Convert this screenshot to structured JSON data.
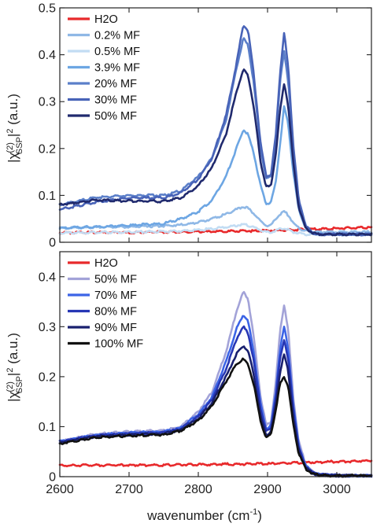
{
  "chart_data": [
    {
      "type": "line",
      "panel": "top",
      "ylabel_parts": {
        "pre": "|χ",
        "sup": "(2)",
        "sub": "SSP",
        "post": "|",
        "sup2": "2",
        "unit": " (a.u.)"
      },
      "xlabel": "",
      "xlim": [
        2600,
        3050
      ],
      "ylim": [
        0,
        0.5
      ],
      "yticks": [
        0,
        0.1,
        0.2,
        0.3,
        0.4,
        0.5
      ],
      "ytick_labels": [
        "0",
        "0.1",
        "0.2",
        "0.3",
        "0.4",
        "0.5"
      ],
      "xticks": [
        2600,
        2700,
        2800,
        2900,
        3000
      ],
      "xtick_labels": [
        "",
        "",
        "",
        "",
        ""
      ],
      "legend": "top-left",
      "grid": false,
      "x": [
        2600,
        2650,
        2700,
        2750,
        2775,
        2800,
        2820,
        2840,
        2855,
        2865,
        2872,
        2880,
        2890,
        2898,
        2905,
        2912,
        2918,
        2924,
        2930,
        2937,
        2945,
        2955,
        2965,
        2975,
        2990,
        3010,
        3030,
        3050
      ],
      "series": [
        {
          "name": "H2O",
          "color": "#e8292b",
          "values": [
            0.02,
            0.021,
            0.021,
            0.022,
            0.022,
            0.023,
            0.023,
            0.023,
            0.024,
            0.024,
            0.024,
            0.024,
            0.025,
            0.025,
            0.025,
            0.025,
            0.026,
            0.026,
            0.026,
            0.027,
            0.027,
            0.027,
            0.028,
            0.028,
            0.029,
            0.03,
            0.031,
            0.032
          ]
        },
        {
          "name": "0.2% MF",
          "color": "#8fb8e6",
          "values": [
            0.03,
            0.032,
            0.033,
            0.035,
            0.037,
            0.042,
            0.05,
            0.06,
            0.07,
            0.076,
            0.072,
            0.062,
            0.045,
            0.035,
            0.037,
            0.05,
            0.06,
            0.066,
            0.058,
            0.042,
            0.03,
            0.024,
            0.022,
            0.022,
            0.022,
            0.022,
            0.022,
            0.022
          ]
        },
        {
          "name": "0.5% MF",
          "color": "#c2dcf3",
          "values": [
            0.02,
            0.021,
            0.022,
            0.023,
            0.024,
            0.026,
            0.029,
            0.032,
            0.036,
            0.038,
            0.036,
            0.032,
            0.026,
            0.022,
            0.022,
            0.025,
            0.028,
            0.03,
            0.027,
            0.022,
            0.019,
            0.017,
            0.017,
            0.017,
            0.017,
            0.017,
            0.017,
            0.017
          ]
        },
        {
          "name": "3.9% MF",
          "color": "#6da6e3",
          "values": [
            0.03,
            0.033,
            0.036,
            0.04,
            0.05,
            0.065,
            0.09,
            0.14,
            0.2,
            0.24,
            0.23,
            0.19,
            0.12,
            0.082,
            0.085,
            0.13,
            0.21,
            0.29,
            0.25,
            0.15,
            0.07,
            0.03,
            0.02,
            0.017,
            0.017,
            0.017,
            0.017,
            0.017
          ]
        },
        {
          "name": "20% MF",
          "color": "#5b7fc9",
          "values": [
            0.08,
            0.095,
            0.1,
            0.1,
            0.11,
            0.14,
            0.18,
            0.26,
            0.37,
            0.435,
            0.42,
            0.34,
            0.2,
            0.135,
            0.14,
            0.22,
            0.34,
            0.41,
            0.34,
            0.2,
            0.09,
            0.035,
            0.02,
            0.017,
            0.017,
            0.017,
            0.017,
            0.017
          ]
        },
        {
          "name": "30% MF",
          "color": "#4863b8",
          "values": [
            0.07,
            0.085,
            0.095,
            0.095,
            0.105,
            0.135,
            0.18,
            0.27,
            0.38,
            0.465,
            0.45,
            0.36,
            0.21,
            0.14,
            0.145,
            0.23,
            0.36,
            0.448,
            0.37,
            0.21,
            0.09,
            0.035,
            0.02,
            0.017,
            0.017,
            0.017,
            0.017,
            0.017
          ]
        },
        {
          "name": "50% MF",
          "color": "#202a6e",
          "values": [
            0.08,
            0.09,
            0.088,
            0.087,
            0.095,
            0.12,
            0.16,
            0.23,
            0.32,
            0.37,
            0.355,
            0.29,
            0.17,
            0.118,
            0.12,
            0.19,
            0.28,
            0.34,
            0.29,
            0.17,
            0.075,
            0.03,
            0.02,
            0.017,
            0.017,
            0.017,
            0.017,
            0.017
          ]
        }
      ]
    },
    {
      "type": "line",
      "panel": "bottom",
      "ylabel_parts": {
        "pre": "|χ",
        "sup": "(2)",
        "sub": "SSP",
        "post": "|",
        "sup2": "2",
        "unit": " (a.u.)"
      },
      "xlabel_parts": {
        "pre": "wavenumber (cm",
        "sup": "-1",
        "post": ")"
      },
      "xlim": [
        2600,
        3050
      ],
      "ylim": [
        0,
        0.45
      ],
      "yticks": [
        0,
        0.1,
        0.2,
        0.3,
        0.4
      ],
      "ytick_labels": [
        "0",
        "0.1",
        "0.2",
        "0.3",
        "0.4"
      ],
      "xticks": [
        2600,
        2700,
        2800,
        2900,
        3000
      ],
      "xtick_labels": [
        "2600",
        "2700",
        "2800",
        "2900",
        "3000"
      ],
      "legend": "top-left",
      "grid": false,
      "x": [
        2600,
        2650,
        2700,
        2750,
        2775,
        2800,
        2820,
        2840,
        2855,
        2865,
        2872,
        2880,
        2890,
        2898,
        2905,
        2912,
        2918,
        2924,
        2930,
        2937,
        2945,
        2955,
        2965,
        2975,
        2990,
        3010,
        3030,
        3050
      ],
      "series": [
        {
          "name": "H2O",
          "color": "#e8292b",
          "values": [
            0.022,
            0.023,
            0.023,
            0.023,
            0.024,
            0.024,
            0.024,
            0.025,
            0.025,
            0.025,
            0.025,
            0.026,
            0.026,
            0.026,
            0.026,
            0.027,
            0.027,
            0.027,
            0.027,
            0.028,
            0.028,
            0.028,
            0.029,
            0.029,
            0.03,
            0.03,
            0.031,
            0.032
          ]
        },
        {
          "name": "50% MF",
          "color": "#a3a3d8",
          "values": [
            0.07,
            0.085,
            0.09,
            0.092,
            0.1,
            0.13,
            0.17,
            0.25,
            0.33,
            0.37,
            0.355,
            0.28,
            0.16,
            0.102,
            0.11,
            0.19,
            0.29,
            0.345,
            0.29,
            0.16,
            0.07,
            0.025,
            0.01,
            0.005,
            0.003,
            0.002,
            0.002,
            0.002
          ]
        },
        {
          "name": "70% MF",
          "color": "#3c64e6",
          "values": [
            0.07,
            0.083,
            0.088,
            0.09,
            0.098,
            0.125,
            0.16,
            0.23,
            0.295,
            0.325,
            0.31,
            0.25,
            0.145,
            0.095,
            0.102,
            0.17,
            0.255,
            0.3,
            0.255,
            0.145,
            0.063,
            0.022,
            0.009,
            0.004,
            0.003,
            0.002,
            0.002,
            0.002
          ]
        },
        {
          "name": "80% MF",
          "color": "#2737b5",
          "values": [
            0.07,
            0.082,
            0.086,
            0.088,
            0.096,
            0.12,
            0.155,
            0.215,
            0.275,
            0.3,
            0.287,
            0.232,
            0.135,
            0.09,
            0.097,
            0.16,
            0.235,
            0.275,
            0.235,
            0.135,
            0.058,
            0.02,
            0.008,
            0.004,
            0.003,
            0.002,
            0.002,
            0.002
          ]
        },
        {
          "name": "90% MF",
          "color": "#19206f",
          "values": [
            0.068,
            0.08,
            0.084,
            0.086,
            0.094,
            0.116,
            0.148,
            0.2,
            0.245,
            0.262,
            0.25,
            0.205,
            0.12,
            0.083,
            0.09,
            0.145,
            0.21,
            0.245,
            0.21,
            0.12,
            0.052,
            0.018,
            0.007,
            0.003,
            0.002,
            0.002,
            0.002,
            0.002
          ]
        },
        {
          "name": "100% MF",
          "color": "#111111",
          "values": [
            0.066,
            0.078,
            0.082,
            0.084,
            0.092,
            0.112,
            0.142,
            0.19,
            0.225,
            0.235,
            0.225,
            0.185,
            0.11,
            0.078,
            0.085,
            0.135,
            0.185,
            0.2,
            0.18,
            0.105,
            0.046,
            0.016,
            0.006,
            0.003,
            0.002,
            0.002,
            0.002,
            0.002
          ]
        }
      ]
    }
  ]
}
